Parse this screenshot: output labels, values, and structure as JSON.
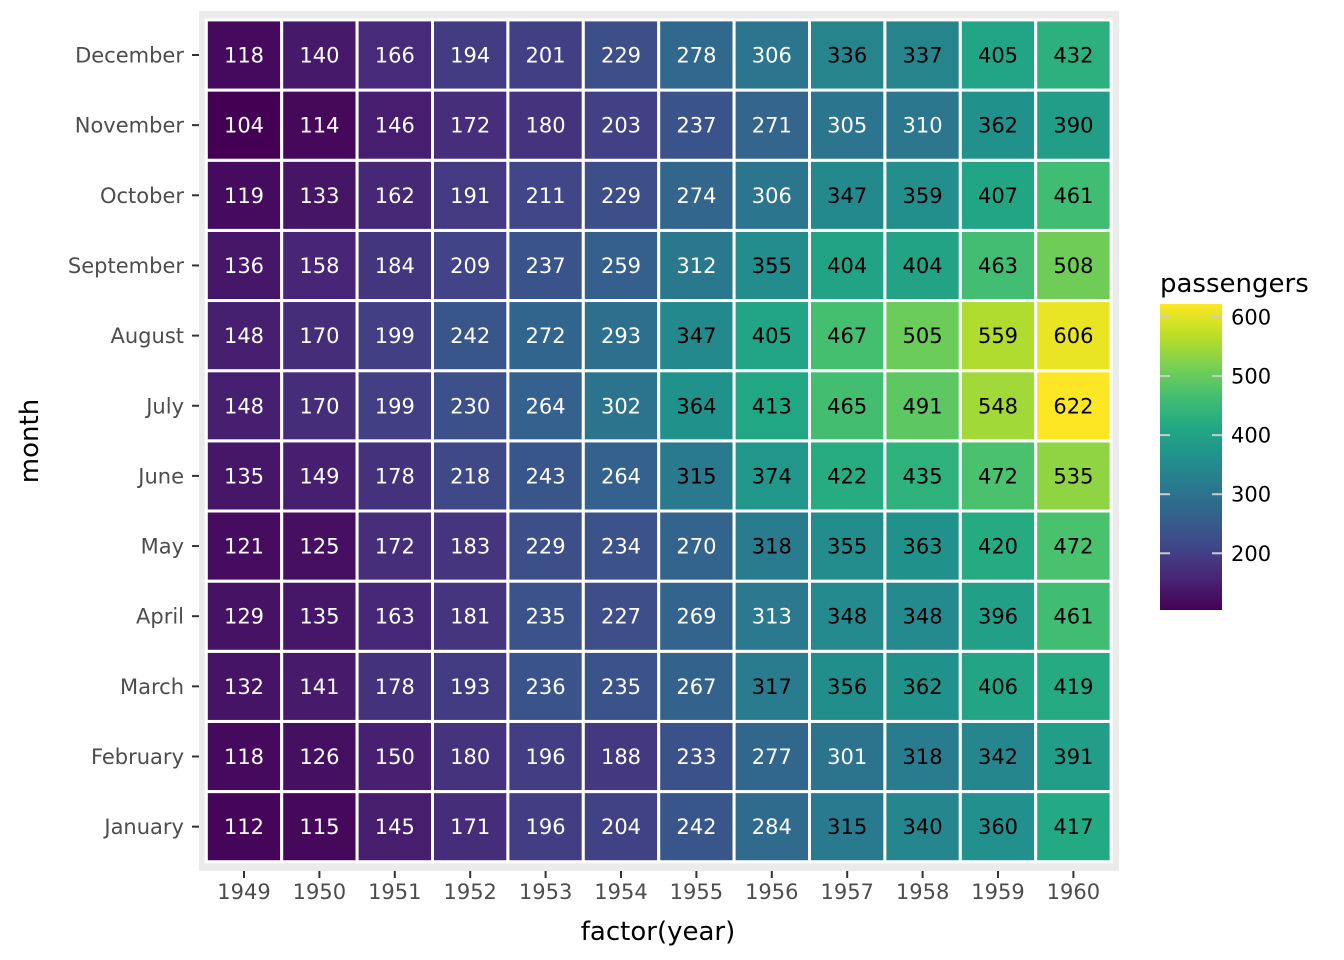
{
  "chart_data": {
    "type": "heatmap",
    "title": "",
    "xlabel": "factor(year)",
    "ylabel": "month",
    "x": [
      "1949",
      "1950",
      "1951",
      "1952",
      "1953",
      "1954",
      "1955",
      "1956",
      "1957",
      "1958",
      "1959",
      "1960"
    ],
    "y": [
      "January",
      "February",
      "March",
      "April",
      "May",
      "June",
      "July",
      "August",
      "September",
      "October",
      "November",
      "December"
    ],
    "values": [
      [
        112,
        115,
        145,
        171,
        196,
        204,
        242,
        284,
        315,
        340,
        360,
        417
      ],
      [
        118,
        126,
        150,
        180,
        196,
        188,
        233,
        277,
        301,
        318,
        342,
        391
      ],
      [
        132,
        141,
        178,
        193,
        236,
        235,
        267,
        317,
        356,
        362,
        406,
        419
      ],
      [
        129,
        135,
        163,
        181,
        235,
        227,
        269,
        313,
        348,
        348,
        396,
        461
      ],
      [
        121,
        125,
        172,
        183,
        229,
        234,
        270,
        318,
        355,
        363,
        420,
        472
      ],
      [
        135,
        149,
        178,
        218,
        243,
        264,
        315,
        374,
        422,
        435,
        472,
        535
      ],
      [
        148,
        170,
        199,
        230,
        264,
        302,
        364,
        413,
        465,
        491,
        548,
        622
      ],
      [
        148,
        170,
        199,
        242,
        272,
        293,
        347,
        405,
        467,
        505,
        559,
        606
      ],
      [
        136,
        158,
        184,
        209,
        237,
        259,
        312,
        355,
        404,
        404,
        463,
        508
      ],
      [
        119,
        133,
        162,
        191,
        211,
        229,
        274,
        306,
        347,
        359,
        407,
        461
      ],
      [
        104,
        114,
        146,
        172,
        180,
        203,
        237,
        271,
        305,
        310,
        362,
        390
      ],
      [
        118,
        140,
        166,
        194,
        201,
        229,
        278,
        306,
        336,
        337,
        405,
        432
      ]
    ],
    "legend": {
      "title": "passengers",
      "ticks": [
        200,
        300,
        400,
        500,
        600
      ],
      "range": [
        104,
        622
      ],
      "placement": "right",
      "colormap": "viridis"
    },
    "panel_background": "#ebebeb",
    "cell_border_color": "#ffffff"
  }
}
